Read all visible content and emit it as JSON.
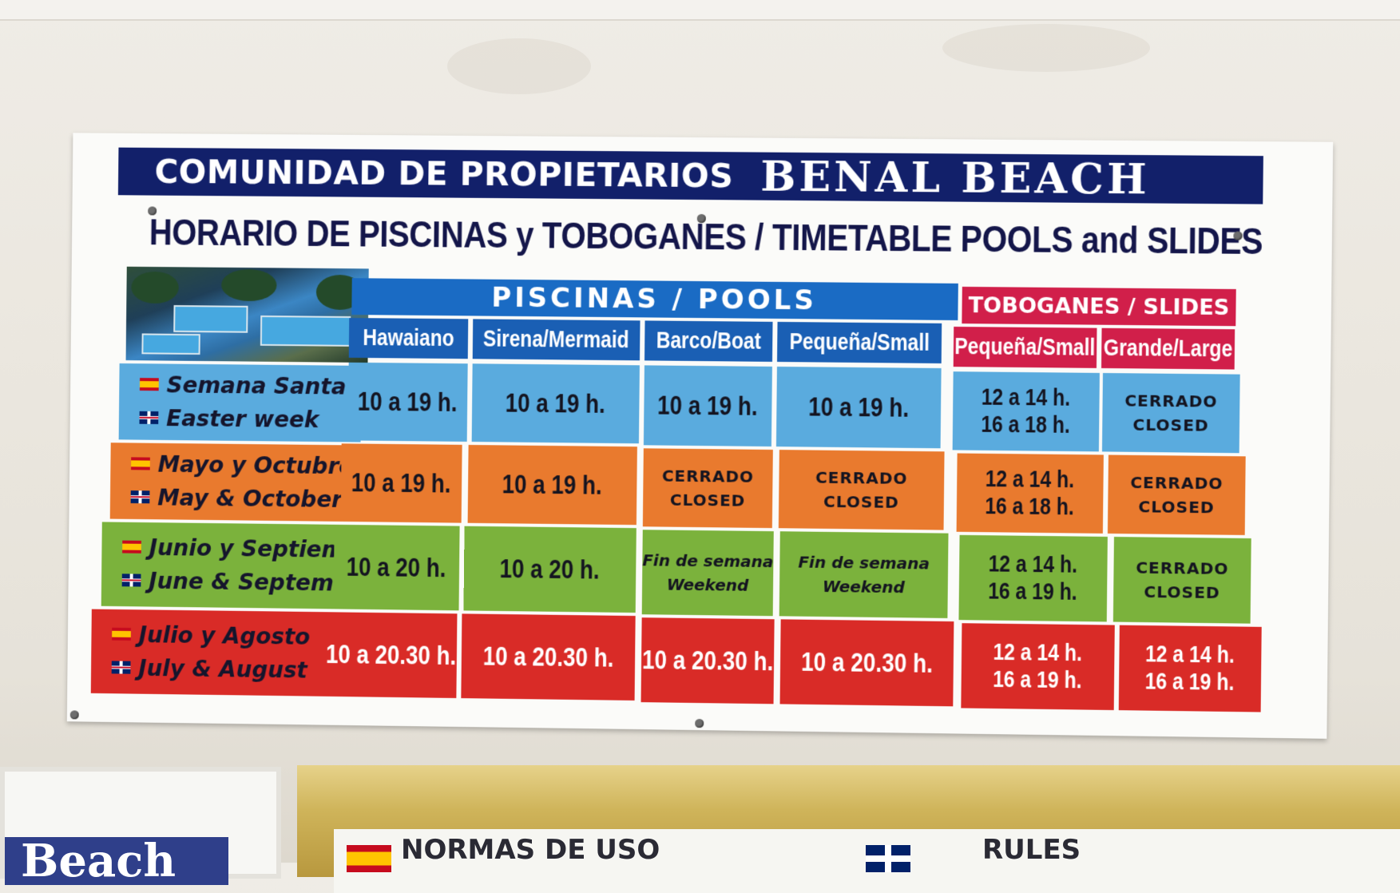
{
  "sign": {
    "header_left": "COMUNIDAD DE PROPIETARIOS",
    "header_right": "BENAL BEACH",
    "subtitle": "HORARIO DE PISCINAS y TOBOGANES / TIMETABLE POOLS and SLIDES",
    "groups": {
      "pools": "PISCINAS / POOLS",
      "slides": "TOBOGANES / SLIDES"
    },
    "columns": [
      "Hawaiano",
      "Sirena/Mermaid",
      "Barco/Boat",
      "Pequeña/Small",
      "Pequeña/Small",
      "Grande/Large"
    ],
    "rows": [
      {
        "label_es": "Semana Santa",
        "label_en": "Easter week",
        "cells": [
          [
            "10 a 19 h."
          ],
          [
            "10 a 19 h."
          ],
          [
            "10 a 19 h."
          ],
          [
            "10 a 19 h."
          ],
          [
            "12 a 14 h.",
            "16 a 18 h."
          ],
          [
            "CERRADO",
            "CLOSED"
          ]
        ]
      },
      {
        "label_es": "Mayo y Octubre",
        "label_en": "May & October",
        "cells": [
          [
            "10 a 19 h."
          ],
          [
            "10 a 19 h."
          ],
          [
            "CERRADO",
            "CLOSED"
          ],
          [
            "CERRADO",
            "CLOSED"
          ],
          [
            "12 a 14 h.",
            "16 a 18 h."
          ],
          [
            "CERRADO",
            "CLOSED"
          ]
        ]
      },
      {
        "label_es": "Junio y Septiembre",
        "label_en": "June & September",
        "cells": [
          [
            "10 a 20 h."
          ],
          [
            "10 a 20 h."
          ],
          [
            "Fin de semana",
            "Weekend"
          ],
          [
            "Fin de semana",
            "Weekend"
          ],
          [
            "12 a 14 h.",
            "16 a 19 h."
          ],
          [
            "CERRADO",
            "CLOSED"
          ]
        ]
      },
      {
        "label_es": "Julio y Agosto",
        "label_en": "July & August",
        "cells": [
          [
            "10 a 20.30 h."
          ],
          [
            "10 a 20.30 h."
          ],
          [
            "10 a 20.30 h."
          ],
          [
            "10 a 20.30 h."
          ],
          [
            "12 a 14 h.",
            "16 a 19 h."
          ],
          [
            "12 a 14 h.",
            "16 a 19 h."
          ]
        ]
      }
    ]
  },
  "lower_frames": {
    "left_partial": "Beach",
    "normas": "NORMAS DE USO",
    "rules": "RULES"
  },
  "colors": {
    "header_navy": "#12206a",
    "pools_blue": "#1a6bc4",
    "slides_red": "#d11f4a",
    "row_blue": "#5aabde",
    "row_orange": "#e97a2e",
    "row_green": "#7bb23c",
    "row_red": "#d92b27"
  }
}
